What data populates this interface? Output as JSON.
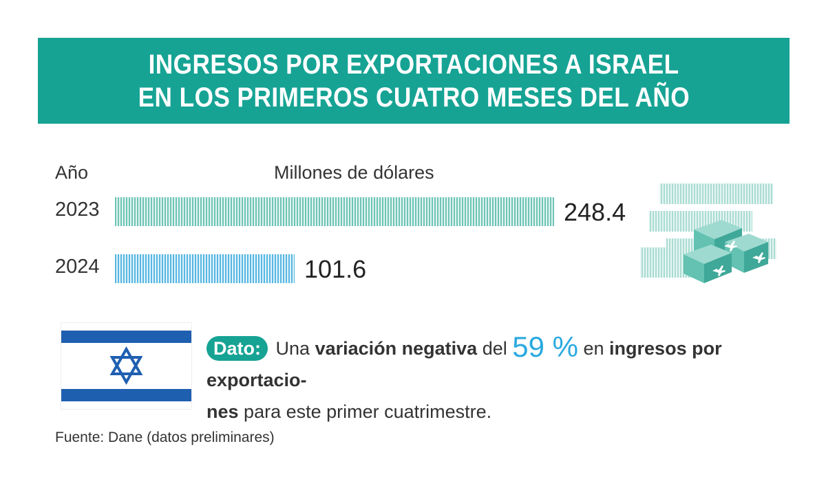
{
  "title": {
    "line1": "INGRESOS POR EXPORTACIONES A ISRAEL",
    "line2": "EN LOS PRIMEROS CUATRO MESES DEL AÑO"
  },
  "chart_data": {
    "type": "bar",
    "orientation": "horizontal",
    "category_header": "Año",
    "unit_label": "Millones de dólares",
    "categories": [
      "2023",
      "2024"
    ],
    "values": [
      248.4,
      101.6
    ],
    "value_labels": [
      "248.4",
      "101.6"
    ],
    "colors": [
      "#6cc4b5",
      "#57b6e2"
    ],
    "xlim": [
      0,
      248.4
    ]
  },
  "fact": {
    "tag": "Dato:",
    "t1": "Una",
    "t2": "variación negativa",
    "t3": "del",
    "pct": "59 %",
    "t4": "en",
    "t5": "ingresos por exportacio-",
    "t6": "nes",
    "t7": "para este primer cuatrimestre."
  },
  "source": "Fuente: Dane (datos preliminares)",
  "colors": {
    "banner": "#16a394",
    "flag_blue": "#1f5fb0",
    "accent": "#2aa9e0"
  },
  "icons": {
    "illustration": "cargo-boxes-airplane-icon",
    "flag": "israel-flag-icon"
  }
}
